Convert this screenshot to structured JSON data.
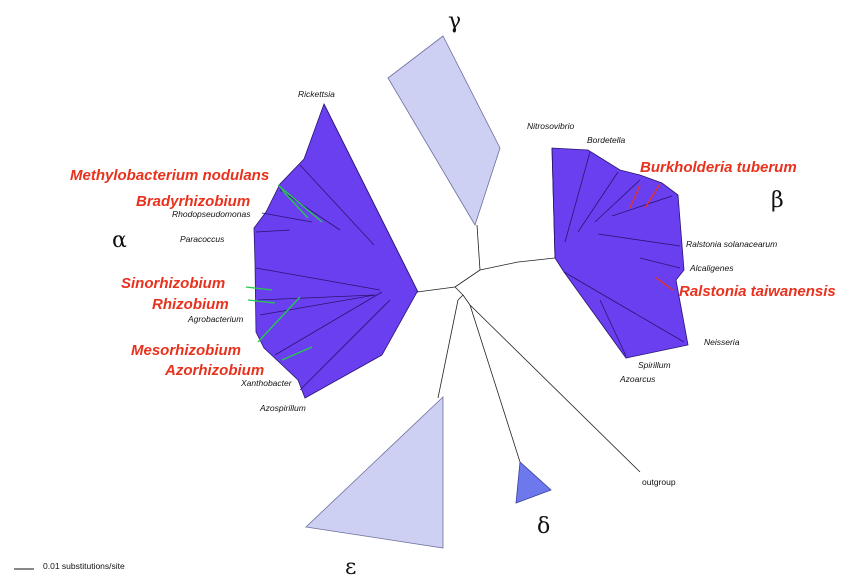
{
  "groups": {
    "gamma": "γ",
    "alpha": "α",
    "beta": "β",
    "delta": "δ",
    "epsilon": "ε"
  },
  "alpha_taxa": {
    "rickettsia": "Rickettsia",
    "rhodopseudomonas": "Rhodopseudomonas",
    "paracoccus": "Paracoccus",
    "agrobacterium": "Agrobacterium",
    "xanthobacter": "Xanthobacter",
    "azospirillum": "Azospirillum"
  },
  "beta_taxa": {
    "nitrosovibrio": "Nitrosovibrio",
    "bordetella": "Bordetella",
    "ralstonia_solanacearum": "Ralstonia solanacearum",
    "alcaligenes": "Alcaligenes",
    "neisseria": "Neisseria",
    "spirillum": "Spirillum",
    "azoarcus": "Azoarcus"
  },
  "highlighted": {
    "methylobacterium": "Methylobacterium nodulans",
    "bradyrhizobium": "Bradyrhizobium",
    "sinorhizobium": "Sinorhizobium",
    "rhizobium": "Rhizobium",
    "mesorhizobium": "Mesorhizobium",
    "azorhizobium": "Azorhizobium",
    "burkholderia": "Burkholderia tuberum",
    "ralstonia_taiwanensis": "Ralstonia taiwanensis"
  },
  "outgroup": "outgroup",
  "scale_bar": "0.01 substitutions/site",
  "colors": {
    "clade_fill": "#6a3ff0",
    "collapsed_light": "#cdd0f2",
    "collapsed_delta": "#6c78ec",
    "highlight_red": "#e8321e",
    "highlight_green": "#27c94e"
  }
}
